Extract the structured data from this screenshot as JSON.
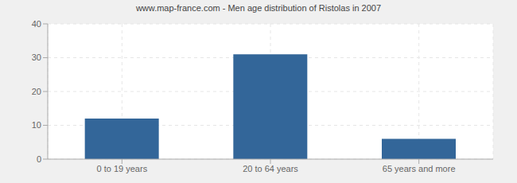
{
  "chart_data": {
    "type": "bar",
    "title": "www.map-france.com - Men age distribution of Ristolas in 2007",
    "categories": [
      "0 to 19 years",
      "20 to 64 years",
      "65 years and more"
    ],
    "values": [
      12,
      31,
      6
    ],
    "color": "#336699",
    "ylim": [
      0,
      40
    ],
    "yticks": [
      0,
      10,
      20,
      30,
      40
    ],
    "grid": true
  }
}
